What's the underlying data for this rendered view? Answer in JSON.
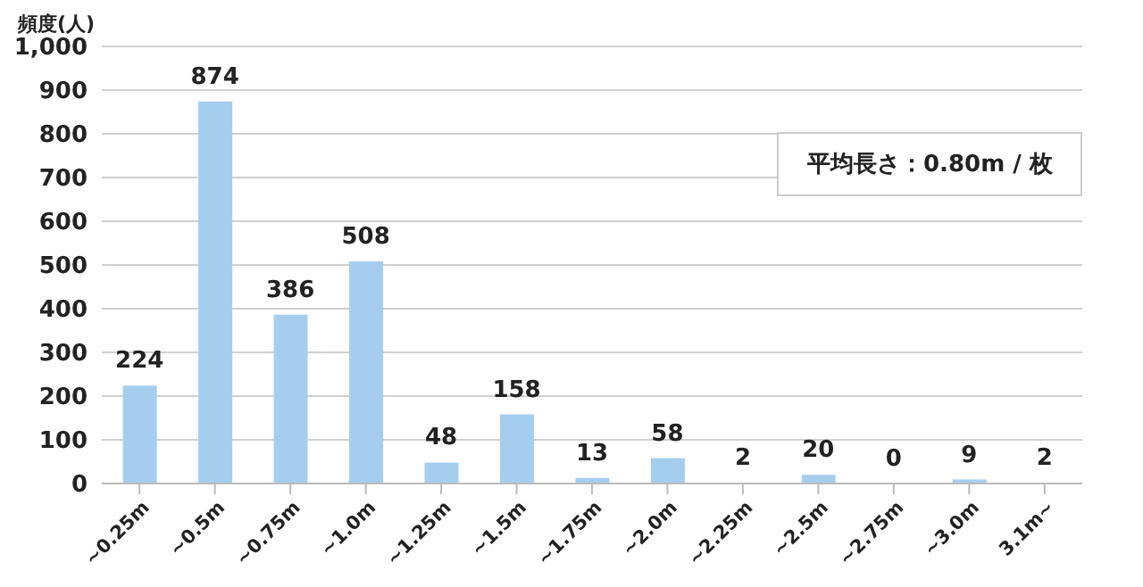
{
  "chart_data": {
    "type": "bar",
    "ylabel": "頻度(人)",
    "categories": [
      "~0.25m",
      "~0.5m",
      "~0.75m",
      "~1.0m",
      "~1.25m",
      "~1.5m",
      "~1.75m",
      "~2.0m",
      "~2.25m",
      "~2.5m",
      "~2.75m",
      "~3.0m",
      "3.1m~"
    ],
    "values": [
      224,
      874,
      386,
      508,
      48,
      158,
      13,
      58,
      2,
      20,
      0,
      9,
      2
    ],
    "color": "#a5cdee",
    "ylim": [
      0,
      1000
    ],
    "yticks": [
      0,
      {
        "value": 100,
        "label": "100"
      },
      200,
      300,
      400,
      500,
      600,
      700,
      800,
      900,
      {
        "value": 1000,
        "label": "1,000"
      }
    ],
    "grid": "y",
    "data_labels": true,
    "annotations": [
      "平均長さ：0.80m / 枚"
    ]
  }
}
